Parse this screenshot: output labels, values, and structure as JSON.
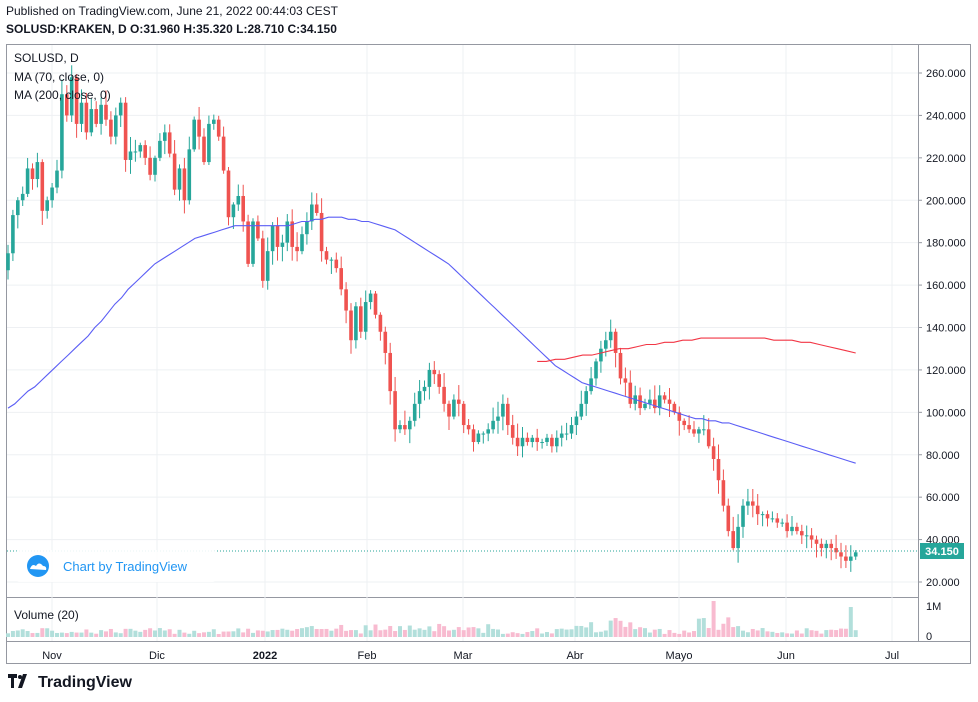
{
  "header": {
    "published": "Published on TradingView.com, June 21, 2022 00:44:03 CEST",
    "symbol": "SOLUSD:KRAKEN, D",
    "o_label": "O:",
    "o": "31.960",
    "h_label": "H:",
    "h": "35.320",
    "l_label": "L:",
    "l": "28.710",
    "c_label": "C:",
    "c": "34.150"
  },
  "legend": {
    "symbol": "SOLUSD, D",
    "ma70": "MA (70, close, 0)",
    "ma200": "MA (200, close, 0)",
    "volume": "Volume (20)"
  },
  "watermark": {
    "text": "Chart by TradingView"
  },
  "footer": {
    "brand": "TradingView"
  },
  "price_tag": "34.150",
  "colors": {
    "up": "#26a69a",
    "down": "#ef5350",
    "up_vol": "#b2dfdb",
    "down_vol": "#f8bbd0",
    "ma70": "#5b5ef5",
    "ma200": "#f23645",
    "grid": "#eef0f3",
    "axis": "#131722",
    "tag": "#26a69a"
  },
  "chart_data": {
    "type": "candlestick",
    "y_ticks": [
      "20.000",
      "40.000",
      "60.000",
      "80.000",
      "100.000",
      "120.000",
      "140.000",
      "160.000",
      "180.000",
      "200.000",
      "220.000",
      "240.000",
      "260.000"
    ],
    "volume_ticks": [
      "1M",
      "0"
    ],
    "x_ticks": [
      "Nov",
      "Dic",
      "2022",
      "Feb",
      "Mar",
      "Abr",
      "Mayo",
      "Jun",
      "Jul"
    ],
    "ylim": [
      11,
      273
    ],
    "closes": [
      175,
      193,
      200,
      203,
      215,
      210,
      218,
      195,
      200,
      206,
      214,
      250,
      240,
      258,
      236,
      246,
      232,
      243,
      236,
      245,
      238,
      230,
      240,
      246,
      219,
      223,
      223,
      226,
      220,
      212,
      220,
      228,
      232,
      222,
      205,
      215,
      200,
      224,
      238,
      230,
      218,
      236,
      238,
      230,
      214,
      192,
      198,
      202,
      190,
      170,
      190,
      182,
      162,
      176,
      188,
      178,
      180,
      190,
      178,
      176,
      184,
      190,
      198,
      194,
      176,
      172,
      172,
      168,
      158,
      148,
      134,
      150,
      138,
      152,
      156,
      146,
      138,
      128,
      110,
      92,
      94,
      92,
      96,
      104,
      110,
      112,
      120,
      118,
      112,
      104,
      98,
      106,
      104,
      94,
      92,
      86,
      90,
      90,
      92,
      96,
      98,
      104,
      94,
      88,
      84,
      88,
      86,
      88,
      86,
      86,
      88,
      84,
      88,
      90,
      90,
      94,
      98,
      104,
      110,
      116,
      124,
      130,
      134,
      138,
      128,
      116,
      114,
      104,
      108,
      102,
      104,
      106,
      102,
      108,
      106,
      104,
      100,
      96,
      94,
      92,
      90,
      92,
      92,
      84,
      78,
      68,
      56,
      44,
      36,
      46,
      56,
      58,
      56,
      52,
      52,
      50,
      50,
      48,
      48,
      44,
      46,
      44,
      42,
      42,
      40,
      38,
      36,
      38,
      36,
      34,
      32,
      30,
      32,
      34
    ],
    "ma70_start": 0,
    "ma70": [
      102,
      104,
      107,
      110,
      112,
      115,
      118,
      121,
      124,
      127,
      130,
      133,
      136,
      140,
      143,
      147,
      151,
      154,
      158,
      161,
      164,
      167,
      170,
      172,
      174,
      176,
      178,
      180,
      182,
      183,
      184,
      185,
      186,
      187,
      188,
      188,
      188,
      188,
      188,
      188,
      188,
      188,
      188,
      189,
      190,
      190,
      191,
      191,
      192,
      192,
      192,
      191,
      191,
      190,
      190,
      189,
      188,
      187,
      186,
      184,
      182,
      180,
      178,
      176,
      174,
      172,
      170,
      167,
      164,
      161,
      158,
      155,
      152,
      149,
      146,
      143,
      140,
      137,
      134,
      131,
      128,
      125,
      122,
      120,
      118,
      116,
      114,
      113,
      112,
      111,
      110,
      109,
      108,
      107,
      106,
      105,
      104,
      103,
      102,
      101,
      100,
      99,
      98,
      97,
      97,
      96,
      96,
      95,
      95,
      94,
      93,
      92,
      91,
      90,
      89,
      88,
      87,
      86,
      85,
      84,
      83,
      82,
      81,
      80,
      79,
      78,
      77,
      76
    ],
    "ma200_start": 108,
    "ma200": [
      124,
      124,
      125,
      125,
      126,
      127,
      127,
      128,
      129,
      130,
      130,
      131,
      132,
      132,
      133,
      133,
      134,
      134,
      135,
      135,
      135,
      135,
      135,
      135,
      135,
      135,
      134,
      134,
      134,
      133,
      133,
      132,
      131,
      130,
      129,
      128
    ]
  }
}
